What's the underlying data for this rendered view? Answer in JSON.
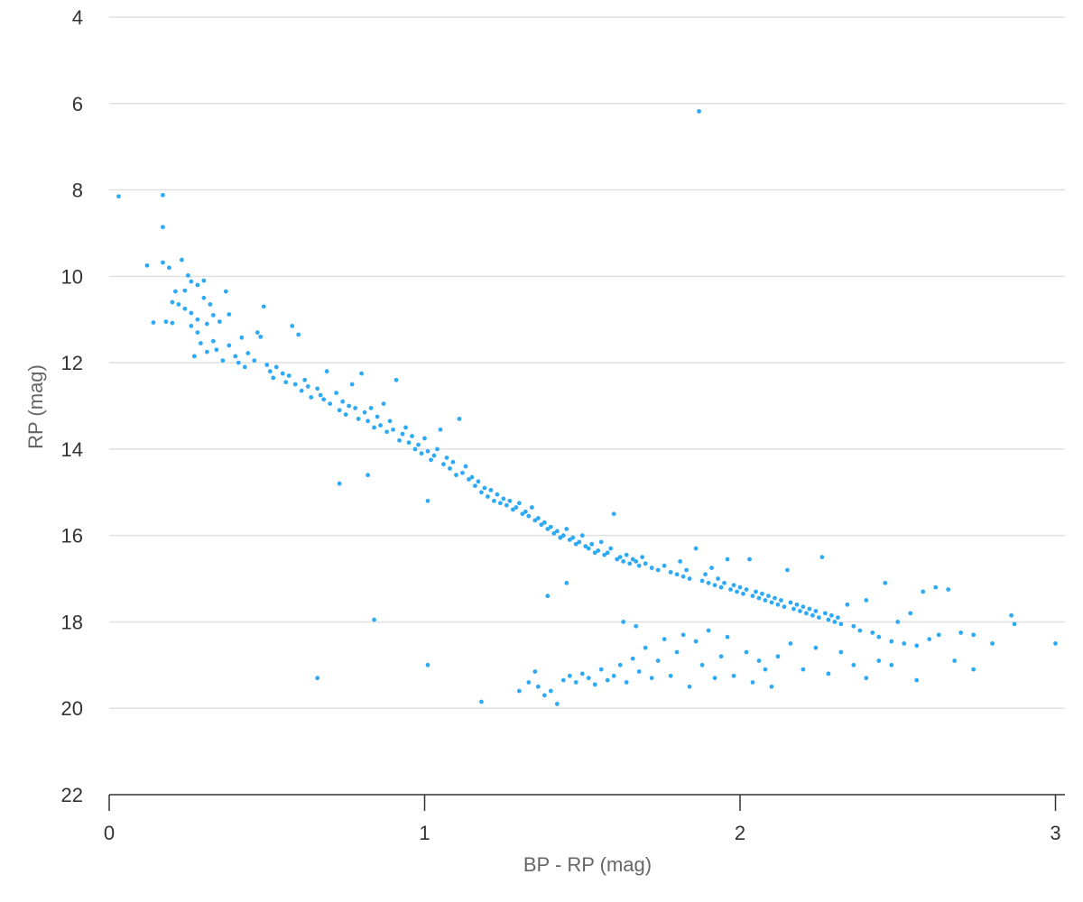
{
  "colors": {
    "point": "#2eaaf5",
    "grid": "#e0e0e0",
    "axis": "#333333"
  },
  "chart_data": {
    "type": "scatter",
    "title": "",
    "xlabel": "BP - RP (mag)",
    "ylabel": "RP (mag)",
    "xlim": [
      0,
      3.03
    ],
    "ylim": [
      4,
      22
    ],
    "y_reversed": true,
    "grid": "horizontal",
    "legend": "none",
    "x_ticks": [
      0,
      1,
      2,
      3
    ],
    "y_ticks": [
      4,
      6,
      8,
      10,
      12,
      14,
      16,
      18,
      20,
      22
    ],
    "x_tick_labels": [
      "0",
      "1",
      "2",
      "3"
    ],
    "y_tick_labels": [
      "4",
      "6",
      "8",
      "10",
      "12",
      "14",
      "16",
      "18",
      "20",
      "22"
    ],
    "series": [
      {
        "points": [
          [
            0.03,
            8.15
          ],
          [
            0.17,
            8.12
          ],
          [
            0.17,
            8.86
          ],
          [
            0.12,
            9.75
          ],
          [
            0.17,
            9.68
          ],
          [
            0.19,
            9.8
          ],
          [
            0.23,
            9.62
          ],
          [
            0.14,
            11.07
          ],
          [
            0.18,
            11.05
          ],
          [
            0.2,
            11.08
          ],
          [
            0.25,
            9.98
          ],
          [
            0.26,
            10.12
          ],
          [
            0.24,
            10.33
          ],
          [
            0.28,
            10.2
          ],
          [
            0.3,
            10.1
          ],
          [
            0.2,
            10.6
          ],
          [
            0.21,
            10.35
          ],
          [
            0.22,
            10.65
          ],
          [
            0.24,
            10.75
          ],
          [
            0.26,
            10.85
          ],
          [
            0.28,
            11.0
          ],
          [
            0.3,
            10.5
          ],
          [
            0.32,
            10.65
          ],
          [
            0.26,
            11.15
          ],
          [
            0.28,
            11.3
          ],
          [
            0.31,
            11.1
          ],
          [
            0.33,
            10.9
          ],
          [
            0.35,
            11.05
          ],
          [
            0.37,
            10.35
          ],
          [
            0.38,
            10.88
          ],
          [
            0.27,
            11.85
          ],
          [
            0.29,
            11.55
          ],
          [
            0.31,
            11.75
          ],
          [
            0.33,
            11.5
          ],
          [
            0.34,
            11.7
          ],
          [
            0.36,
            11.95
          ],
          [
            0.38,
            11.6
          ],
          [
            0.4,
            11.85
          ],
          [
            0.41,
            12.0
          ],
          [
            0.42,
            11.42
          ],
          [
            0.43,
            12.1
          ],
          [
            0.44,
            11.78
          ],
          [
            0.46,
            11.95
          ],
          [
            0.47,
            11.3
          ],
          [
            0.48,
            11.4
          ],
          [
            0.49,
            10.7
          ],
          [
            0.5,
            12.05
          ],
          [
            0.51,
            12.2
          ],
          [
            0.52,
            12.35
          ],
          [
            0.53,
            12.1
          ],
          [
            0.55,
            12.25
          ],
          [
            0.56,
            12.45
          ],
          [
            0.57,
            12.3
          ],
          [
            0.58,
            11.15
          ],
          [
            0.6,
            11.35
          ],
          [
            0.59,
            12.5
          ],
          [
            0.61,
            12.65
          ],
          [
            0.62,
            12.4
          ],
          [
            0.63,
            12.55
          ],
          [
            0.64,
            12.8
          ],
          [
            0.66,
            12.6
          ],
          [
            0.67,
            12.75
          ],
          [
            0.68,
            12.85
          ],
          [
            0.69,
            12.2
          ],
          [
            0.7,
            12.95
          ],
          [
            0.72,
            12.7
          ],
          [
            0.73,
            13.1
          ],
          [
            0.74,
            12.9
          ],
          [
            0.75,
            13.2
          ],
          [
            0.76,
            13.0
          ],
          [
            0.77,
            12.5
          ],
          [
            0.78,
            13.05
          ],
          [
            0.79,
            13.3
          ],
          [
            0.8,
            12.25
          ],
          [
            0.81,
            13.15
          ],
          [
            0.82,
            13.35
          ],
          [
            0.83,
            13.05
          ],
          [
            0.84,
            13.5
          ],
          [
            0.85,
            13.25
          ],
          [
            0.86,
            13.45
          ],
          [
            0.87,
            12.95
          ],
          [
            0.88,
            13.6
          ],
          [
            0.89,
            13.35
          ],
          [
            0.9,
            13.55
          ],
          [
            0.91,
            12.4
          ],
          [
            0.92,
            13.8
          ],
          [
            0.93,
            13.65
          ],
          [
            0.94,
            13.5
          ],
          [
            0.95,
            13.85
          ],
          [
            0.96,
            13.7
          ],
          [
            0.97,
            14.0
          ],
          [
            0.98,
            13.9
          ],
          [
            0.99,
            14.1
          ],
          [
            1.0,
            13.75
          ],
          [
            1.01,
            14.05
          ],
          [
            1.02,
            14.25
          ],
          [
            1.03,
            14.15
          ],
          [
            1.04,
            14.0
          ],
          [
            1.05,
            13.55
          ],
          [
            1.06,
            14.35
          ],
          [
            1.07,
            14.2
          ],
          [
            1.08,
            14.45
          ],
          [
            1.09,
            14.3
          ],
          [
            1.1,
            14.6
          ],
          [
            1.11,
            13.3
          ],
          [
            1.12,
            14.55
          ],
          [
            1.13,
            14.4
          ],
          [
            1.14,
            14.7
          ],
          [
            1.15,
            14.65
          ],
          [
            1.16,
            14.85
          ],
          [
            1.17,
            14.75
          ],
          [
            1.18,
            15.0
          ],
          [
            1.19,
            14.9
          ],
          [
            1.2,
            15.1
          ],
          [
            1.21,
            14.95
          ],
          [
            1.22,
            15.2
          ],
          [
            1.23,
            15.05
          ],
          [
            1.24,
            15.25
          ],
          [
            1.25,
            15.15
          ],
          [
            1.26,
            15.3
          ],
          [
            1.27,
            15.2
          ],
          [
            1.28,
            15.4
          ],
          [
            1.29,
            15.35
          ],
          [
            1.3,
            15.25
          ],
          [
            1.31,
            15.5
          ],
          [
            1.32,
            15.45
          ],
          [
            1.33,
            15.55
          ],
          [
            1.34,
            15.35
          ],
          [
            1.35,
            15.65
          ],
          [
            1.36,
            15.6
          ],
          [
            1.37,
            15.75
          ],
          [
            1.38,
            15.7
          ],
          [
            1.39,
            15.85
          ],
          [
            1.4,
            15.8
          ],
          [
            1.41,
            15.95
          ],
          [
            1.42,
            15.9
          ],
          [
            1.43,
            16.05
          ],
          [
            1.44,
            16.0
          ],
          [
            1.45,
            15.85
          ],
          [
            1.46,
            16.1
          ],
          [
            1.47,
            16.05
          ],
          [
            1.48,
            16.2
          ],
          [
            1.49,
            16.15
          ],
          [
            1.5,
            16.0
          ],
          [
            1.51,
            16.25
          ],
          [
            1.52,
            16.3
          ],
          [
            1.53,
            16.2
          ],
          [
            1.54,
            16.4
          ],
          [
            1.55,
            16.35
          ],
          [
            1.56,
            16.15
          ],
          [
            1.57,
            16.45
          ],
          [
            1.58,
            16.4
          ],
          [
            1.59,
            16.3
          ],
          [
            1.6,
            15.5
          ],
          [
            1.61,
            16.55
          ],
          [
            1.62,
            16.5
          ],
          [
            1.63,
            16.6
          ],
          [
            1.64,
            16.45
          ],
          [
            1.65,
            16.65
          ],
          [
            1.66,
            16.55
          ],
          [
            1.67,
            16.6
          ],
          [
            1.68,
            16.7
          ],
          [
            1.69,
            16.5
          ],
          [
            1.7,
            16.65
          ],
          [
            1.72,
            16.75
          ],
          [
            1.74,
            16.8
          ],
          [
            1.76,
            16.7
          ],
          [
            1.78,
            16.85
          ],
          [
            1.8,
            16.9
          ],
          [
            1.81,
            16.6
          ],
          [
            1.82,
            16.95
          ],
          [
            1.83,
            16.8
          ],
          [
            1.84,
            17.0
          ],
          [
            1.86,
            16.3
          ],
          [
            1.87,
            6.18
          ],
          [
            1.88,
            17.05
          ],
          [
            1.89,
            16.9
          ],
          [
            1.9,
            17.1
          ],
          [
            1.91,
            16.75
          ],
          [
            1.92,
            17.15
          ],
          [
            1.93,
            17.0
          ],
          [
            1.94,
            17.2
          ],
          [
            1.95,
            17.1
          ],
          [
            1.96,
            16.55
          ],
          [
            1.97,
            17.25
          ],
          [
            1.98,
            17.15
          ],
          [
            1.99,
            17.3
          ],
          [
            2.0,
            17.2
          ],
          [
            2.01,
            17.35
          ],
          [
            2.02,
            17.25
          ],
          [
            2.03,
            16.55
          ],
          [
            2.04,
            17.4
          ],
          [
            2.05,
            17.3
          ],
          [
            2.06,
            17.45
          ],
          [
            2.07,
            17.35
          ],
          [
            2.08,
            17.5
          ],
          [
            2.09,
            17.4
          ],
          [
            2.1,
            17.55
          ],
          [
            2.11,
            17.45
          ],
          [
            2.12,
            17.6
          ],
          [
            2.13,
            17.5
          ],
          [
            2.14,
            17.65
          ],
          [
            2.15,
            16.8
          ],
          [
            2.16,
            17.55
          ],
          [
            2.17,
            17.7
          ],
          [
            2.18,
            17.6
          ],
          [
            2.19,
            17.75
          ],
          [
            2.2,
            17.65
          ],
          [
            2.21,
            17.8
          ],
          [
            2.22,
            17.7
          ],
          [
            2.23,
            17.85
          ],
          [
            2.24,
            17.75
          ],
          [
            2.25,
            17.9
          ],
          [
            2.26,
            16.5
          ],
          [
            2.27,
            17.8
          ],
          [
            2.28,
            17.95
          ],
          [
            2.29,
            17.85
          ],
          [
            2.3,
            18.0
          ],
          [
            2.31,
            17.9
          ],
          [
            2.32,
            18.05
          ],
          [
            2.34,
            17.6
          ],
          [
            2.36,
            18.1
          ],
          [
            2.38,
            18.2
          ],
          [
            2.4,
            17.5
          ],
          [
            2.42,
            18.25
          ],
          [
            2.44,
            18.35
          ],
          [
            2.46,
            17.1
          ],
          [
            2.48,
            18.45
          ],
          [
            2.5,
            18.0
          ],
          [
            2.52,
            18.5
          ],
          [
            2.54,
            17.8
          ],
          [
            2.56,
            18.55
          ],
          [
            2.58,
            17.3
          ],
          [
            2.6,
            18.4
          ],
          [
            2.62,
            17.2
          ],
          [
            2.63,
            18.3
          ],
          [
            2.66,
            17.25
          ],
          [
            2.7,
            18.25
          ],
          [
            2.74,
            18.3
          ],
          [
            2.8,
            18.5
          ],
          [
            2.86,
            17.85
          ],
          [
            2.87,
            18.05
          ],
          [
            3.0,
            18.5
          ],
          [
            0.73,
            14.8
          ],
          [
            0.82,
            14.6
          ],
          [
            0.84,
            17.95
          ],
          [
            1.01,
            15.2
          ],
          [
            1.01,
            19.0
          ],
          [
            1.18,
            19.85
          ],
          [
            1.39,
            17.4
          ],
          [
            1.45,
            17.1
          ],
          [
            0.66,
            19.3
          ],
          [
            1.3,
            19.6
          ],
          [
            1.33,
            19.4
          ],
          [
            1.35,
            19.15
          ],
          [
            1.36,
            19.5
          ],
          [
            1.38,
            19.7
          ],
          [
            1.4,
            19.6
          ],
          [
            1.42,
            19.9
          ],
          [
            1.44,
            19.35
          ],
          [
            1.46,
            19.25
          ],
          [
            1.48,
            19.4
          ],
          [
            1.5,
            19.2
          ],
          [
            1.52,
            19.3
          ],
          [
            1.54,
            19.45
          ],
          [
            1.56,
            19.1
          ],
          [
            1.58,
            19.35
          ],
          [
            1.6,
            19.25
          ],
          [
            1.62,
            19.0
          ],
          [
            1.63,
            18.0
          ],
          [
            1.64,
            19.4
          ],
          [
            1.66,
            18.85
          ],
          [
            1.67,
            18.1
          ],
          [
            1.68,
            19.15
          ],
          [
            1.7,
            18.6
          ],
          [
            1.72,
            19.3
          ],
          [
            1.74,
            18.9
          ],
          [
            1.76,
            18.4
          ],
          [
            1.78,
            19.25
          ],
          [
            1.8,
            18.7
          ],
          [
            1.82,
            18.3
          ],
          [
            1.84,
            19.5
          ],
          [
            1.86,
            18.45
          ],
          [
            1.88,
            19.0
          ],
          [
            1.9,
            18.2
          ],
          [
            1.92,
            19.3
          ],
          [
            1.94,
            18.8
          ],
          [
            1.96,
            18.35
          ],
          [
            1.98,
            19.25
          ],
          [
            2.02,
            18.7
          ],
          [
            2.04,
            19.4
          ],
          [
            2.06,
            18.9
          ],
          [
            2.08,
            19.1
          ],
          [
            2.1,
            19.5
          ],
          [
            2.12,
            18.8
          ],
          [
            2.16,
            18.5
          ],
          [
            2.2,
            19.1
          ],
          [
            2.24,
            18.6
          ],
          [
            2.28,
            19.2
          ],
          [
            2.32,
            18.7
          ],
          [
            2.36,
            19.0
          ],
          [
            2.4,
            19.3
          ],
          [
            2.44,
            18.9
          ],
          [
            2.48,
            19.0
          ],
          [
            2.56,
            19.35
          ],
          [
            2.68,
            18.9
          ],
          [
            2.74,
            19.1
          ]
        ]
      }
    ]
  }
}
